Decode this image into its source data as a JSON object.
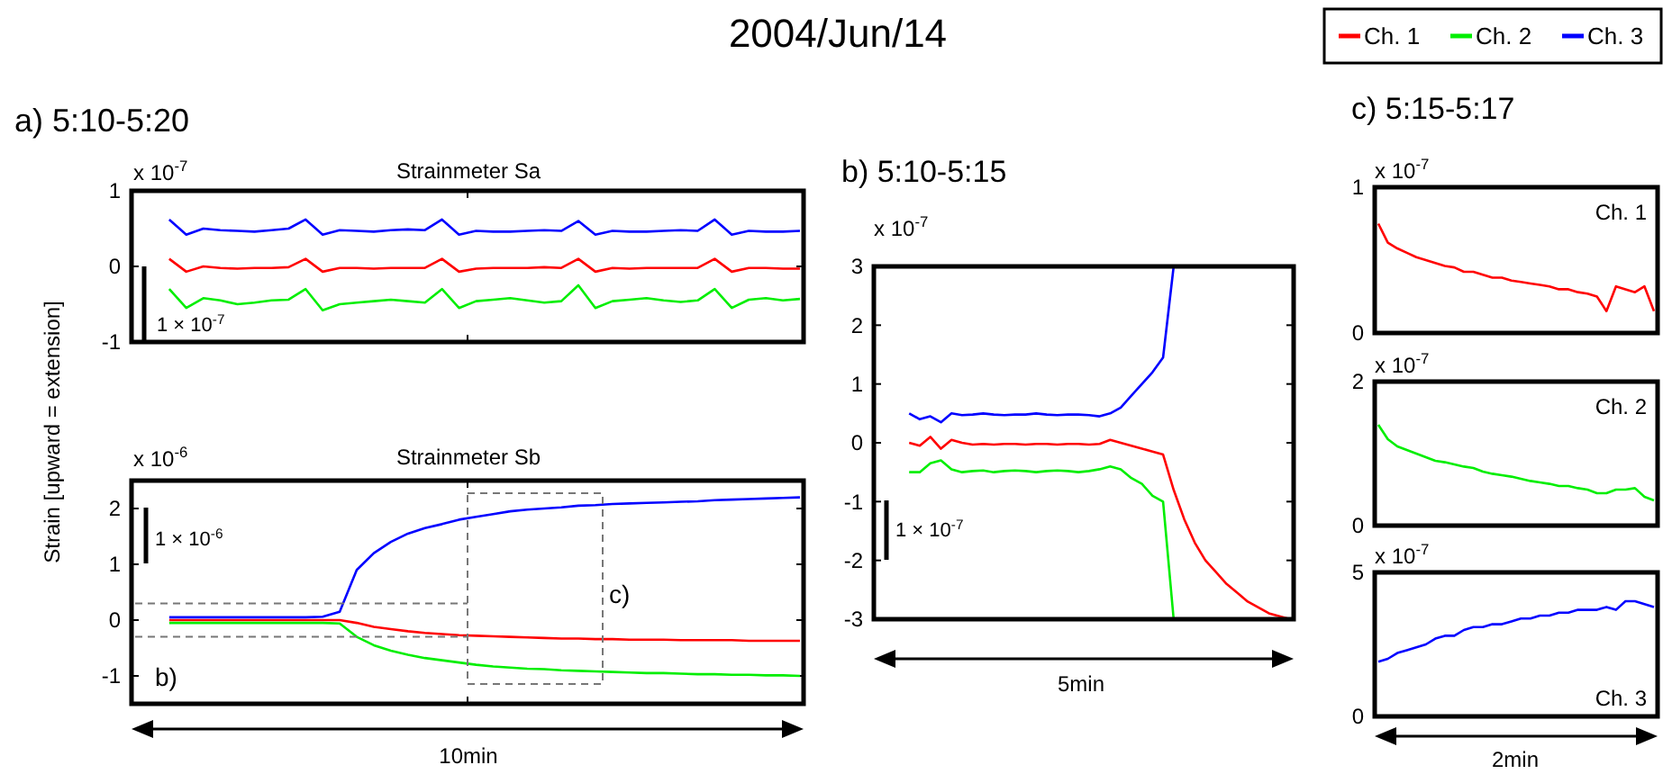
{
  "chart_data": [
    {
      "type": "line",
      "title": "Strainmeter Sa",
      "ylabel": "Strain [upward = extension]",
      "annotations": [
        "2004/Jun/14",
        "a) 5:10-5:20",
        "x 10$^{-7}$",
        "1 × 10$^{-7}$"
      ],
      "legend": "top right",
      "tick_labels": "y",
      "ylim": [
        -1,
        1
      ],
      "yticks": [
        -1,
        0,
        1
      ],
      "categories": [
        null,
        null,
        null,
        null,
        null,
        null,
        null,
        null,
        null,
        null,
        null,
        null,
        null,
        null,
        null,
        null,
        null,
        null,
        null,
        null,
        null,
        null,
        null,
        null,
        null,
        null,
        null,
        null,
        null,
        null,
        null,
        null,
        null,
        null,
        null,
        null,
        null,
        null,
        null,
        null
      ],
      "series": [
        {
          "name": "Ch. 1",
          "color": "#ff0000",
          "values": [
            null,
            null,
            0.1,
            -0.07,
            0,
            -0.02,
            -0.03,
            -0.02,
            -0.02,
            -0.01,
            0.1,
            -0.07,
            -0.02,
            -0.02,
            -0.03,
            -0.02,
            -0.02,
            -0.02,
            0.1,
            -0.07,
            -0.03,
            -0.02,
            -0.02,
            -0.02,
            -0.01,
            -0.02,
            0.1,
            -0.07,
            -0.02,
            -0.03,
            -0.02,
            -0.02,
            -0.02,
            -0.02,
            0.1,
            -0.07,
            -0.02,
            -0.02,
            -0.03,
            -0.03
          ]
        },
        {
          "name": "Ch. 2",
          "color": "#00ee00",
          "values": [
            null,
            null,
            -0.3,
            -0.55,
            -0.42,
            -0.45,
            -0.5,
            -0.48,
            -0.45,
            -0.44,
            -0.3,
            -0.58,
            -0.5,
            -0.48,
            -0.46,
            -0.44,
            -0.46,
            -0.48,
            -0.3,
            -0.55,
            -0.46,
            -0.44,
            -0.42,
            -0.45,
            -0.48,
            -0.46,
            -0.25,
            -0.55,
            -0.46,
            -0.44,
            -0.42,
            -0.45,
            -0.47,
            -0.45,
            -0.3,
            -0.55,
            -0.44,
            -0.42,
            -0.45,
            -0.43
          ]
        },
        {
          "name": "Ch. 3",
          "color": "#0000ff",
          "values": [
            null,
            null,
            0.62,
            0.42,
            0.5,
            0.48,
            0.47,
            0.46,
            0.48,
            0.5,
            0.62,
            0.42,
            0.48,
            0.47,
            0.46,
            0.48,
            0.49,
            0.48,
            0.62,
            0.42,
            0.47,
            0.46,
            0.46,
            0.47,
            0.48,
            0.47,
            0.6,
            0.42,
            0.47,
            0.46,
            0.46,
            0.47,
            0.48,
            0.47,
            0.62,
            0.42,
            0.47,
            0.46,
            0.46,
            0.47
          ]
        }
      ]
    },
    {
      "type": "line",
      "title": "Strainmeter Sb",
      "annotations": [
        "x 10$^{-6}$",
        "1 × 10$^{-6}$",
        "c)",
        "10min"
      ],
      "ref_lines": [
        {
          "axis": "y",
          "value": 0.3,
          "color": "#777777",
          "line_style": "dashed"
        },
        {
          "axis": "y",
          "value": -0.3,
          "label": "b)",
          "color": "#777777",
          "line_style": "dashed"
        }
      ],
      "tick_labels": "y",
      "ylim": [
        -1.5,
        2.5
      ],
      "yticks": [
        -1,
        0,
        1,
        2
      ],
      "categories": [
        null,
        null,
        null,
        null,
        null,
        null,
        null,
        null,
        null,
        null,
        null,
        null,
        null,
        null,
        null,
        null,
        null,
        null,
        null,
        null,
        null,
        null,
        null,
        null,
        null,
        null,
        null,
        null,
        null,
        null,
        null,
        null,
        null,
        null,
        null,
        null,
        null,
        null,
        null,
        null
      ],
      "series": [
        {
          "color": "#ff0000",
          "values": [
            null,
            null,
            0,
            0,
            0,
            0,
            0,
            0,
            0,
            0,
            0,
            0,
            0,
            -0.05,
            -0.12,
            -0.16,
            -0.2,
            -0.23,
            -0.25,
            -0.27,
            -0.28,
            -0.29,
            -0.3,
            -0.31,
            -0.32,
            -0.33,
            -0.33,
            -0.34,
            -0.34,
            -0.35,
            -0.35,
            -0.35,
            -0.36,
            -0.36,
            -0.36,
            -0.36,
            -0.37,
            -0.37,
            -0.37,
            -0.37
          ]
        },
        {
          "color": "#00ee00",
          "values": [
            null,
            null,
            -0.05,
            -0.05,
            -0.05,
            -0.05,
            -0.05,
            -0.05,
            -0.05,
            -0.05,
            -0.05,
            -0.05,
            -0.06,
            -0.3,
            -0.45,
            -0.55,
            -0.62,
            -0.68,
            -0.72,
            -0.76,
            -0.8,
            -0.83,
            -0.85,
            -0.87,
            -0.88,
            -0.9,
            -0.91,
            -0.92,
            -0.93,
            -0.94,
            -0.95,
            -0.95,
            -0.96,
            -0.97,
            -0.97,
            -0.98,
            -0.98,
            -0.99,
            -0.99,
            -1.0
          ]
        },
        {
          "color": "#0000ff",
          "values": [
            null,
            null,
            0.05,
            0.05,
            0.05,
            0.05,
            0.05,
            0.05,
            0.05,
            0.05,
            0.05,
            0.06,
            0.15,
            0.9,
            1.2,
            1.4,
            1.55,
            1.65,
            1.72,
            1.8,
            1.85,
            1.9,
            1.95,
            1.98,
            2.0,
            2.02,
            2.05,
            2.06,
            2.08,
            2.09,
            2.1,
            2.11,
            2.12,
            2.13,
            2.15,
            2.16,
            2.17,
            2.18,
            2.19,
            2.2
          ]
        }
      ]
    },
    {
      "type": "line",
      "title": "b) 5:10-5:15",
      "annotations": [
        "x 10$^{-7}$",
        "1 × 10$^{-7}$",
        "5min"
      ],
      "tick_labels": "y",
      "ylim": [
        -3,
        3
      ],
      "yticks": [
        -3,
        -2,
        -1,
        0,
        1,
        2,
        3
      ],
      "categories": [
        null,
        null,
        null,
        null,
        null,
        null,
        null,
        null,
        null,
        null,
        null,
        null,
        null,
        null,
        null,
        null,
        null,
        null,
        null,
        null,
        null,
        null,
        null,
        null,
        null,
        null,
        null,
        null,
        null,
        null,
        null,
        null,
        null,
        null,
        null,
        null,
        null,
        null,
        null,
        null
      ],
      "series": [
        {
          "color": "#ff0000",
          "values": [
            null,
            null,
            null,
            0,
            -0.05,
            0.1,
            -0.1,
            0.05,
            0,
            -0.03,
            -0.02,
            -0.03,
            -0.02,
            -0.02,
            -0.03,
            -0.02,
            -0.02,
            -0.03,
            -0.02,
            -0.02,
            -0.03,
            -0.02,
            0.05,
            0,
            -0.05,
            -0.1,
            -0.15,
            -0.2,
            -0.8,
            -1.3,
            -1.7,
            -2.0,
            -2.2,
            -2.4,
            -2.55,
            -2.7,
            -2.8,
            -2.9,
            -2.95,
            -3
          ]
        },
        {
          "color": "#00ee00",
          "values": [
            null,
            null,
            null,
            -0.5,
            -0.5,
            -0.35,
            -0.3,
            -0.45,
            -0.5,
            -0.48,
            -0.47,
            -0.5,
            -0.48,
            -0.47,
            -0.48,
            -0.5,
            -0.48,
            -0.47,
            -0.48,
            -0.5,
            -0.48,
            -0.45,
            -0.4,
            -0.45,
            -0.6,
            -0.7,
            -0.9,
            -1.0,
            -3,
            null,
            null,
            null,
            null,
            null,
            null,
            null,
            null,
            null,
            null,
            null
          ]
        },
        {
          "color": "#0000ff",
          "values": [
            null,
            null,
            null,
            0.5,
            0.4,
            0.45,
            0.35,
            0.5,
            0.47,
            0.48,
            0.5,
            0.48,
            0.47,
            0.48,
            0.48,
            0.5,
            0.48,
            0.47,
            0.48,
            0.48,
            0.47,
            0.45,
            0.5,
            0.6,
            0.8,
            1.0,
            1.2,
            1.45,
            3,
            null,
            null,
            null,
            null,
            null,
            null,
            null,
            null,
            null,
            null,
            null
          ]
        }
      ]
    },
    {
      "type": "line",
      "title": "c) 5:15-5:17",
      "annotations": [
        "x 10$^{-7}$"
      ],
      "tick_labels": "y",
      "ylim": [
        0,
        1
      ],
      "yticks": [
        0,
        1
      ],
      "categories": [
        null,
        null,
        null,
        null,
        null,
        null,
        null,
        null,
        null,
        null,
        null,
        null,
        null,
        null,
        null,
        null,
        null,
        null,
        null,
        null,
        null,
        null,
        null,
        null,
        null,
        null,
        null,
        null,
        null,
        null
      ],
      "series": [
        {
          "name": "Ch. 1",
          "color": "#ff0000",
          "values": [
            0.75,
            0.62,
            0.58,
            0.55,
            0.52,
            0.5,
            0.48,
            0.46,
            0.45,
            0.42,
            0.42,
            0.4,
            0.38,
            0.38,
            0.36,
            0.35,
            0.34,
            0.33,
            0.32,
            0.3,
            0.3,
            0.28,
            0.27,
            0.25,
            0.15,
            0.32,
            0.3,
            0.28,
            0.32,
            0.15
          ]
        }
      ]
    },
    {
      "type": "line",
      "annotations": [
        "x 10$^{-7}$"
      ],
      "tick_labels": "y",
      "ylim": [
        0,
        2
      ],
      "yticks": [
        0,
        2
      ],
      "categories": [
        null,
        null,
        null,
        null,
        null,
        null,
        null,
        null,
        null,
        null,
        null,
        null,
        null,
        null,
        null,
        null,
        null,
        null,
        null,
        null,
        null,
        null,
        null,
        null,
        null,
        null,
        null,
        null,
        null,
        null
      ],
      "series": [
        {
          "name": "Ch. 2",
          "color": "#00ee00",
          "values": [
            1.4,
            1.2,
            1.1,
            1.05,
            1.0,
            0.95,
            0.9,
            0.88,
            0.85,
            0.82,
            0.8,
            0.75,
            0.72,
            0.7,
            0.68,
            0.65,
            0.62,
            0.6,
            0.58,
            0.55,
            0.55,
            0.52,
            0.5,
            0.45,
            0.45,
            0.5,
            0.5,
            0.52,
            0.4,
            0.35
          ]
        }
      ]
    },
    {
      "type": "line",
      "annotations": [
        "x 10$^{-7}$",
        "2min"
      ],
      "tick_labels": "y",
      "ylim": [
        0,
        5
      ],
      "yticks": [
        0,
        5
      ],
      "categories": [
        null,
        null,
        null,
        null,
        null,
        null,
        null,
        null,
        null,
        null,
        null,
        null,
        null,
        null,
        null,
        null,
        null,
        null,
        null,
        null,
        null,
        null,
        null,
        null,
        null,
        null,
        null,
        null,
        null,
        null
      ],
      "series": [
        {
          "name": "Ch. 3",
          "color": "#0000ff",
          "values": [
            1.9,
            2.0,
            2.2,
            2.3,
            2.4,
            2.5,
            2.7,
            2.8,
            2.8,
            3.0,
            3.1,
            3.1,
            3.2,
            3.2,
            3.3,
            3.4,
            3.4,
            3.5,
            3.5,
            3.6,
            3.6,
            3.7,
            3.7,
            3.7,
            3.8,
            3.7,
            4.0,
            4.0,
            3.9,
            3.8
          ]
        }
      ]
    }
  ]
}
